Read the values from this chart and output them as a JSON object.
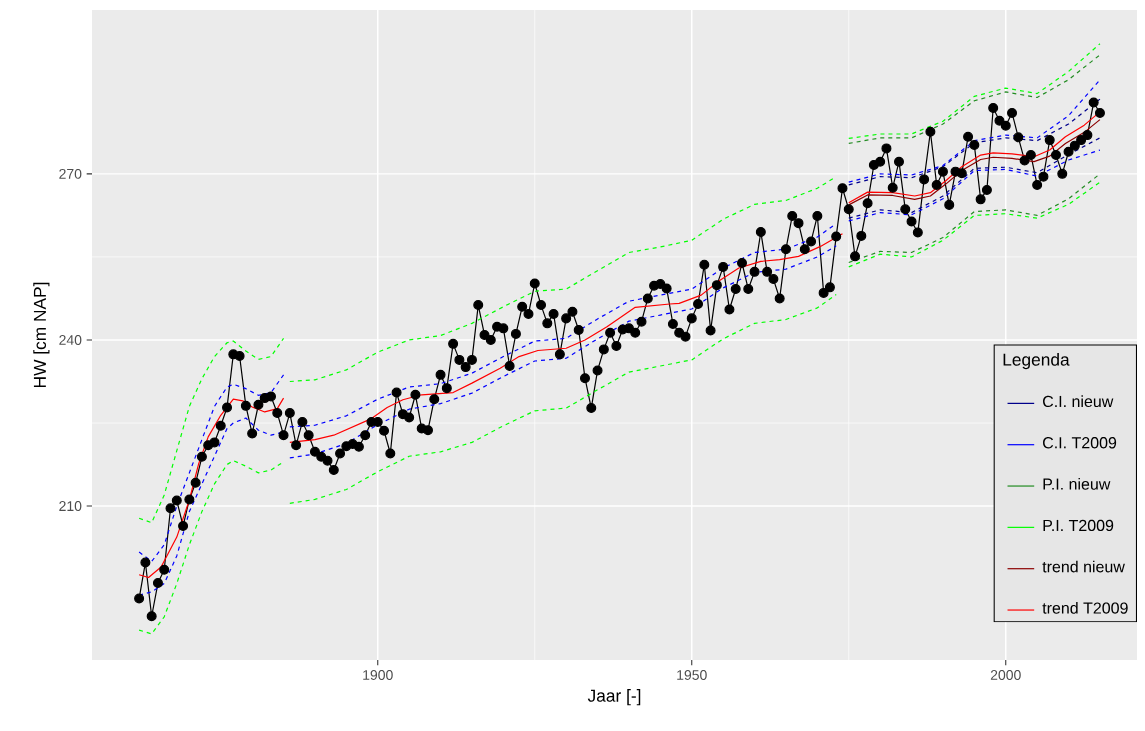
{
  "chart_data": {
    "type": "line",
    "xlabel": "Jaar [-]",
    "ylabel": "HW [cm NAP]",
    "legend_title": "Legenda",
    "xlim": [
      1854.5,
      2020.9
    ],
    "ylim": [
      182.2,
      299.6
    ],
    "xticks": [
      1900,
      1950,
      2000
    ],
    "yticks": [
      210,
      240,
      270
    ],
    "grid": true,
    "legend": "bottom right",
    "series": [
      {
        "color": "#000000",
        "marker": "circle",
        "line_style": "solid",
        "x": [
          1862,
          1863,
          1864,
          1865,
          1866,
          1867,
          1868,
          1869,
          1870,
          1871,
          1872,
          1873,
          1874,
          1875,
          1876,
          1877,
          1878,
          1879,
          1880,
          1881,
          1882,
          1883,
          1884,
          1885,
          1886,
          1887,
          1888,
          1889,
          1890,
          1891,
          1892,
          1893,
          1894,
          1895,
          1896,
          1897,
          1898,
          1899,
          1900,
          1901,
          1902,
          1903,
          1904,
          1905,
          1906,
          1907,
          1908,
          1909,
          1910,
          1911,
          1912,
          1913,
          1914,
          1915,
          1916,
          1917,
          1918,
          1919,
          1920,
          1921,
          1922,
          1923,
          1924,
          1925,
          1926,
          1927,
          1928,
          1929,
          1930,
          1931,
          1932,
          1933,
          1934,
          1935,
          1936,
          1937,
          1938,
          1939,
          1940,
          1941,
          1942,
          1943,
          1944,
          1945,
          1946,
          1947,
          1948,
          1949,
          1950,
          1951,
          1952,
          1953,
          1954,
          1955,
          1956,
          1957,
          1958,
          1959,
          1960,
          1961,
          1962,
          1963,
          1964,
          1965,
          1966,
          1967,
          1968,
          1969,
          1970,
          1971,
          1972,
          1973,
          1974,
          1975,
          1976,
          1977,
          1978,
          1979,
          1980,
          1981,
          1982,
          1983,
          1984,
          1985,
          1986,
          1987,
          1988,
          1989,
          1990,
          1991,
          1992,
          1993,
          1994,
          1995,
          1996,
          1997,
          1998,
          1999,
          2000,
          2001,
          2002,
          2003,
          2004,
          2005,
          2006,
          2007,
          2008,
          2009,
          2010,
          2011,
          2012,
          2013,
          2014,
          2015
        ],
        "values": [
          193.3,
          199.8,
          190.1,
          196.1,
          198.5,
          209.6,
          211.0,
          206.4,
          211.2,
          214.2,
          218.9,
          221.0,
          221.5,
          224.5,
          227.8,
          237.4,
          237.1,
          228.1,
          223.1,
          228.3,
          229.5,
          229.8,
          226.8,
          222.8,
          226.8,
          221.0,
          225.2,
          222.8,
          219.8,
          218.9,
          218.2,
          216.5,
          219.5,
          220.8,
          221.2,
          220.7,
          222.8,
          225.2,
          225.2,
          223.6,
          219.5,
          230.5,
          226.6,
          226.0,
          230.1,
          224.0,
          223.7,
          229.3,
          233.7,
          231.3,
          239.3,
          236.4,
          235.1,
          236.4,
          246.3,
          240.9,
          240.0,
          242.4,
          242.1,
          235.3,
          241.1,
          246.0,
          244.7,
          250.2,
          246.3,
          243.0,
          244.7,
          237.4,
          243.9,
          245.1,
          241.8,
          233.1,
          227.7,
          234.5,
          238.3,
          241.3,
          238.9,
          241.9,
          242.1,
          241.3,
          243.3,
          247.5,
          249.8,
          250.1,
          249.3,
          242.9,
          241.3,
          240.6,
          243.9,
          246.5,
          253.6,
          241.7,
          249.9,
          253.2,
          245.5,
          249.2,
          253.9,
          249.2,
          252.3,
          259.5,
          252.3,
          251.0,
          247.5,
          256.4,
          262.4,
          261.1,
          256.4,
          257.8,
          262.4,
          248.5,
          249.5,
          258.7,
          267.4,
          263.6,
          255.1,
          258.8,
          264.7,
          271.6,
          272.2,
          274.6,
          267.5,
          272.2,
          263.6,
          261.4,
          259.4,
          269.0,
          277.6,
          268.0,
          270.4,
          264.4,
          270.4,
          270.1,
          276.7,
          275.2,
          265.4,
          267.1,
          281.9,
          279.6,
          278.7,
          281.0,
          276.6,
          272.4,
          273.4,
          268.0,
          269.5,
          276.1,
          273.4,
          270.0,
          274.0,
          275.1,
          276.1,
          277.0,
          282.9,
          281.0
        ]
      },
      {
        "name": "C.I. nieuw",
        "color": "#00008b",
        "line_style": "dashed",
        "x": [
          1975,
          1980,
          1985,
          1990,
          1995,
          2000,
          2005,
          2010,
          2015
        ],
        "values": [
          268.0,
          269.5,
          269.3,
          271.3,
          275.6,
          276.5,
          276.0,
          279.0,
          283.5
        ]
      },
      {
        "color": "#00008b",
        "line_style": "dashed",
        "x": [
          1975,
          1980,
          1985,
          1990,
          1995,
          2000,
          2005,
          2010,
          2015
        ],
        "values": [
          262.0,
          263.5,
          263.0,
          266.0,
          271.0,
          271.2,
          270.2,
          273.5,
          276.5
        ]
      },
      {
        "name": "C.I. T2009",
        "color": "#0000ff",
        "line_style": "dashed",
        "x": [
          1862,
          1864,
          1866,
          1868,
          1870,
          1872,
          1874,
          1876,
          1877,
          1879,
          1881,
          1883,
          1885,
          1885.5,
          1886,
          1890,
          1895,
          1900,
          1905,
          1910,
          1915,
          1920,
          1925,
          1930,
          1935,
          1940,
          1945,
          1950,
          1955,
          1960,
          1965,
          1970,
          1973,
          1974.5,
          1975,
          1980,
          1985,
          1990,
          1995,
          2000,
          2005,
          2010,
          2015
        ],
        "values": [
          201.7,
          200.0,
          203.0,
          210.0,
          216.0,
          222.0,
          228.0,
          231.5,
          232.0,
          231.2,
          230.0,
          230.5,
          233.7,
          null,
          224.3,
          224.6,
          226.3,
          229.3,
          231.5,
          232.1,
          234.0,
          237.0,
          239.8,
          240.3,
          243.8,
          247.0,
          248.1,
          249.2,
          253.0,
          255.8,
          256.4,
          258.6,
          261.0,
          null,
          268.5,
          270.0,
          269.8,
          271.5,
          276.0,
          277.0,
          276.5,
          280.5,
          287.0
        ]
      },
      {
        "color": "#0000ff",
        "line_style": "dashed",
        "x": [
          1862,
          1864,
          1866,
          1868,
          1870,
          1872,
          1874,
          1876,
          1877,
          1879,
          1881,
          1883,
          1885,
          1885.5,
          1886,
          1890,
          1895,
          1900,
          1905,
          1910,
          1915,
          1920,
          1925,
          1930,
          1935,
          1940,
          1945,
          1950,
          1955,
          1960,
          1965,
          1970,
          1973,
          1974.5,
          1975,
          1980,
          1985,
          1990,
          1995,
          2000,
          2005,
          2010,
          2015
        ],
        "values": [
          193.9,
          194.5,
          196.0,
          201.0,
          209.0,
          214.0,
          219.0,
          224.0,
          225.0,
          225.9,
          223.7,
          222.8,
          223.4,
          null,
          218.7,
          219.4,
          221.3,
          224.7,
          227.5,
          228.5,
          230.4,
          233.4,
          236.2,
          236.7,
          240.2,
          243.4,
          244.5,
          245.6,
          249.4,
          252.2,
          252.8,
          255.0,
          257.0,
          null,
          261.5,
          263.0,
          262.6,
          265.5,
          270.6,
          270.8,
          269.6,
          272.5,
          274.3
        ]
      },
      {
        "name": "P.I. nieuw",
        "color": "#228b22",
        "line_style": "dashed",
        "x": [
          1975,
          1980,
          1985,
          1990,
          1995,
          2000,
          2005,
          2010,
          2015
        ],
        "values": [
          275.5,
          276.5,
          276.5,
          279.0,
          283.2,
          284.8,
          283.8,
          287.0,
          291.5
        ]
      },
      {
        "color": "#228b22",
        "line_style": "dashed",
        "x": [
          1975,
          1980,
          1985,
          1990,
          1995,
          2000,
          2005,
          2010,
          2015
        ],
        "values": [
          254.0,
          256.0,
          255.8,
          258.5,
          263.2,
          263.5,
          262.5,
          265.5,
          270.0
        ]
      },
      {
        "name": "P.I. T2009",
        "color": "#00ff00",
        "line_style": "dashed",
        "x": [
          1862,
          1864,
          1866,
          1868,
          1870,
          1872,
          1874,
          1876,
          1877,
          1879,
          1881,
          1883,
          1885,
          1885.5,
          1886,
          1890,
          1895,
          1900,
          1905,
          1910,
          1915,
          1920,
          1925,
          1930,
          1935,
          1940,
          1945,
          1950,
          1955,
          1960,
          1965,
          1970,
          1973,
          1974.5,
          1975,
          1980,
          1985,
          1990,
          1995,
          2000,
          2005,
          2010,
          2015
        ],
        "values": [
          207.8,
          207.0,
          212.0,
          220.0,
          228.0,
          233.0,
          237.0,
          239.5,
          239.8,
          238.0,
          236.5,
          237.0,
          240.3,
          null,
          232.5,
          232.8,
          234.6,
          237.8,
          240.0,
          240.8,
          243.0,
          246.0,
          248.8,
          249.2,
          252.5,
          255.8,
          256.8,
          258.0,
          261.8,
          264.5,
          265.2,
          267.4,
          269.5,
          null,
          276.4,
          277.2,
          277.2,
          279.5,
          284.0,
          285.5,
          284.5,
          288.5,
          293.5
        ]
      },
      {
        "color": "#00ff00",
        "line_style": "dashed",
        "x": [
          1862,
          1864,
          1866,
          1868,
          1870,
          1872,
          1874,
          1876,
          1877,
          1879,
          1881,
          1883,
          1885,
          1885.5,
          1886,
          1890,
          1895,
          1900,
          1905,
          1910,
          1915,
          1920,
          1925,
          1930,
          1935,
          1940,
          1945,
          1950,
          1955,
          1960,
          1965,
          1970,
          1973,
          1974.5,
          1975,
          1980,
          1985,
          1990,
          1995,
          2000,
          2005,
          2010,
          2015
        ],
        "values": [
          187.6,
          186.9,
          190.0,
          196.0,
          203.0,
          209.0,
          214.0,
          217.5,
          218.2,
          217.2,
          216.0,
          216.5,
          218.0,
          null,
          210.5,
          211.2,
          213.0,
          216.2,
          219.0,
          219.8,
          221.5,
          224.5,
          227.2,
          227.7,
          231.0,
          234.2,
          235.3,
          236.4,
          240.2,
          243.0,
          243.7,
          245.8,
          248.2,
          null,
          253.2,
          255.5,
          255.0,
          258.0,
          262.5,
          262.8,
          262.0,
          264.5,
          268.5
        ]
      },
      {
        "name": "trend nieuw",
        "color": "#8b0000",
        "line_style": "solid",
        "x": [
          1975,
          1978,
          1982,
          1985.5,
          1988,
          1990.5,
          1993,
          1996,
          1998,
          2001,
          2004.5,
          2007,
          2009.5,
          2012.5,
          2015
        ],
        "values": [
          264.4,
          266.2,
          266.1,
          265.4,
          266.0,
          268.2,
          270.6,
          272.6,
          273.0,
          272.8,
          272.2,
          273.2,
          275.5,
          277.5,
          279.8
        ]
      },
      {
        "name": "trend T2009",
        "color": "#ff0000",
        "line_style": "solid",
        "x": [
          1862,
          1863.5,
          1865.5,
          1868,
          1870,
          1871.5,
          1873,
          1875,
          1877,
          1878.5,
          1880,
          1882,
          1884,
          1885,
          1885.5,
          1886,
          1890,
          1893,
          1896,
          1899,
          1901.5,
          1904,
          1907,
          1912,
          1915,
          1919.5,
          1922.5,
          1925.5,
          1930,
          1933,
          1936.5,
          1941,
          1946.5,
          1948,
          1951.5,
          1954.5,
          1957.5,
          1961,
          1964,
          1967,
          1970.5,
          1974,
          1974.5,
          1975,
          1978,
          1982,
          1985.5,
          1988,
          1990.5,
          1993,
          1996,
          1998,
          2001,
          2004.5,
          2007,
          2009.5,
          2012.5,
          2015
        ],
        "values": [
          197.6,
          197.1,
          199.0,
          204.4,
          211.1,
          217.7,
          222.5,
          226.4,
          229.3,
          229.0,
          227.9,
          227.0,
          227.6,
          229.5,
          null,
          221.5,
          222.0,
          222.8,
          224.3,
          225.8,
          227.8,
          229.2,
          230.1,
          230.5,
          232.2,
          234.9,
          237.0,
          238.1,
          238.5,
          240.0,
          242.4,
          245.9,
          246.5,
          246.6,
          248.1,
          250.8,
          253.0,
          254.2,
          254.5,
          255.1,
          256.9,
          259.2,
          null,
          264.8,
          266.7,
          266.6,
          266.0,
          266.6,
          268.8,
          271.3,
          273.4,
          273.8,
          273.6,
          273.1,
          274.3,
          276.7,
          278.8,
          281.2
        ]
      }
    ]
  }
}
